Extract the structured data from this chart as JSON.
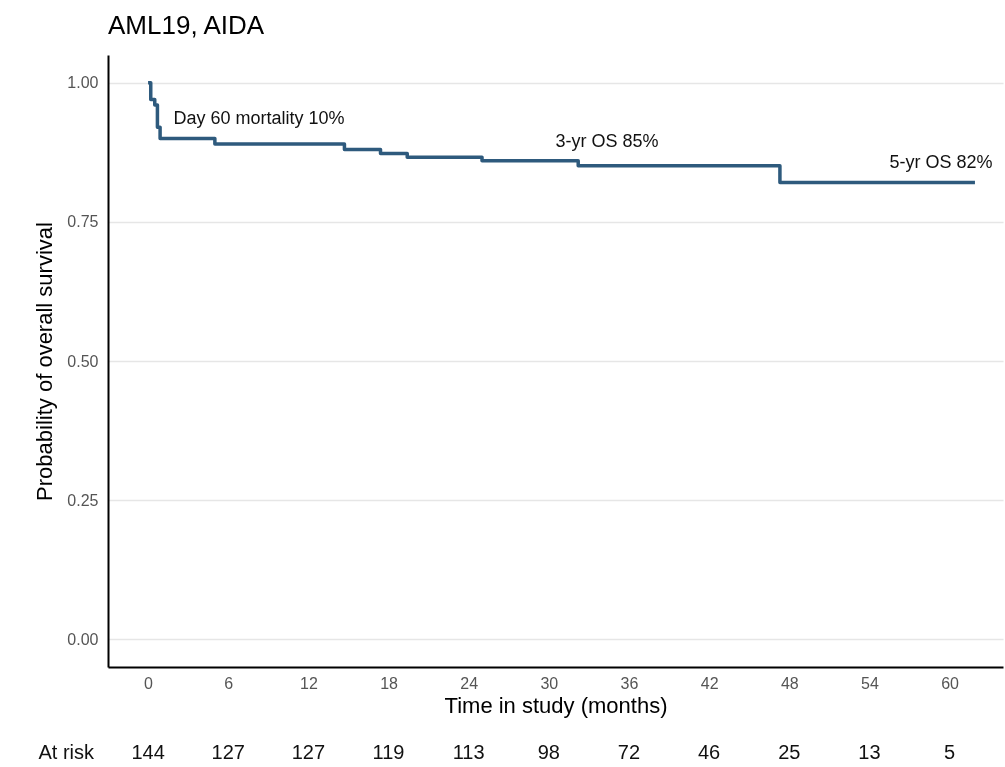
{
  "chart_data": {
    "type": "step",
    "title": "AML19, AIDA",
    "xlabel": "Time in study (months)",
    "ylabel": "Probability of overall survival",
    "x": [
      0,
      0.2,
      0.5,
      0.7,
      0.9,
      5,
      14.7,
      17.4,
      19.4,
      25,
      32.2,
      47.3,
      61.9
    ],
    "series": [
      {
        "color": "#2e5a7d",
        "values": [
          1.0,
          0.97,
          0.96,
          0.92,
          0.9,
          0.89,
          0.88,
          0.873,
          0.866,
          0.86,
          0.851,
          0.821,
          0.821
        ]
      }
    ],
    "xlim": [
      -3,
      64
    ],
    "xticks": [
      0,
      6,
      12,
      18,
      24,
      30,
      36,
      42,
      48,
      54,
      60
    ],
    "ylim": [
      -0.05,
      1.05
    ],
    "yticks": [
      {
        "value": 0,
        "label": "0.00"
      },
      {
        "value": 0.25,
        "label": "0.25"
      },
      {
        "value": 0.5,
        "label": "0.50"
      },
      {
        "value": 0.75,
        "label": "0.75"
      },
      {
        "value": 1,
        "label": "1.00"
      }
    ],
    "grid": "y",
    "marker": "none",
    "line_style": "solid",
    "annotations": [
      {
        "text": "Day 60 mortality 10%",
        "x": 1.9,
        "y": 0.9
      },
      {
        "text": "3-yr OS 85%",
        "x": 30.5,
        "y": 0.86
      },
      {
        "text": "5-yr OS 82%",
        "x": 55.5,
        "y": 0.821
      },
      "At risk",
      "144",
      "127",
      "127",
      "119",
      "113",
      "98",
      "72",
      "46",
      "25",
      "13",
      "5"
    ]
  }
}
